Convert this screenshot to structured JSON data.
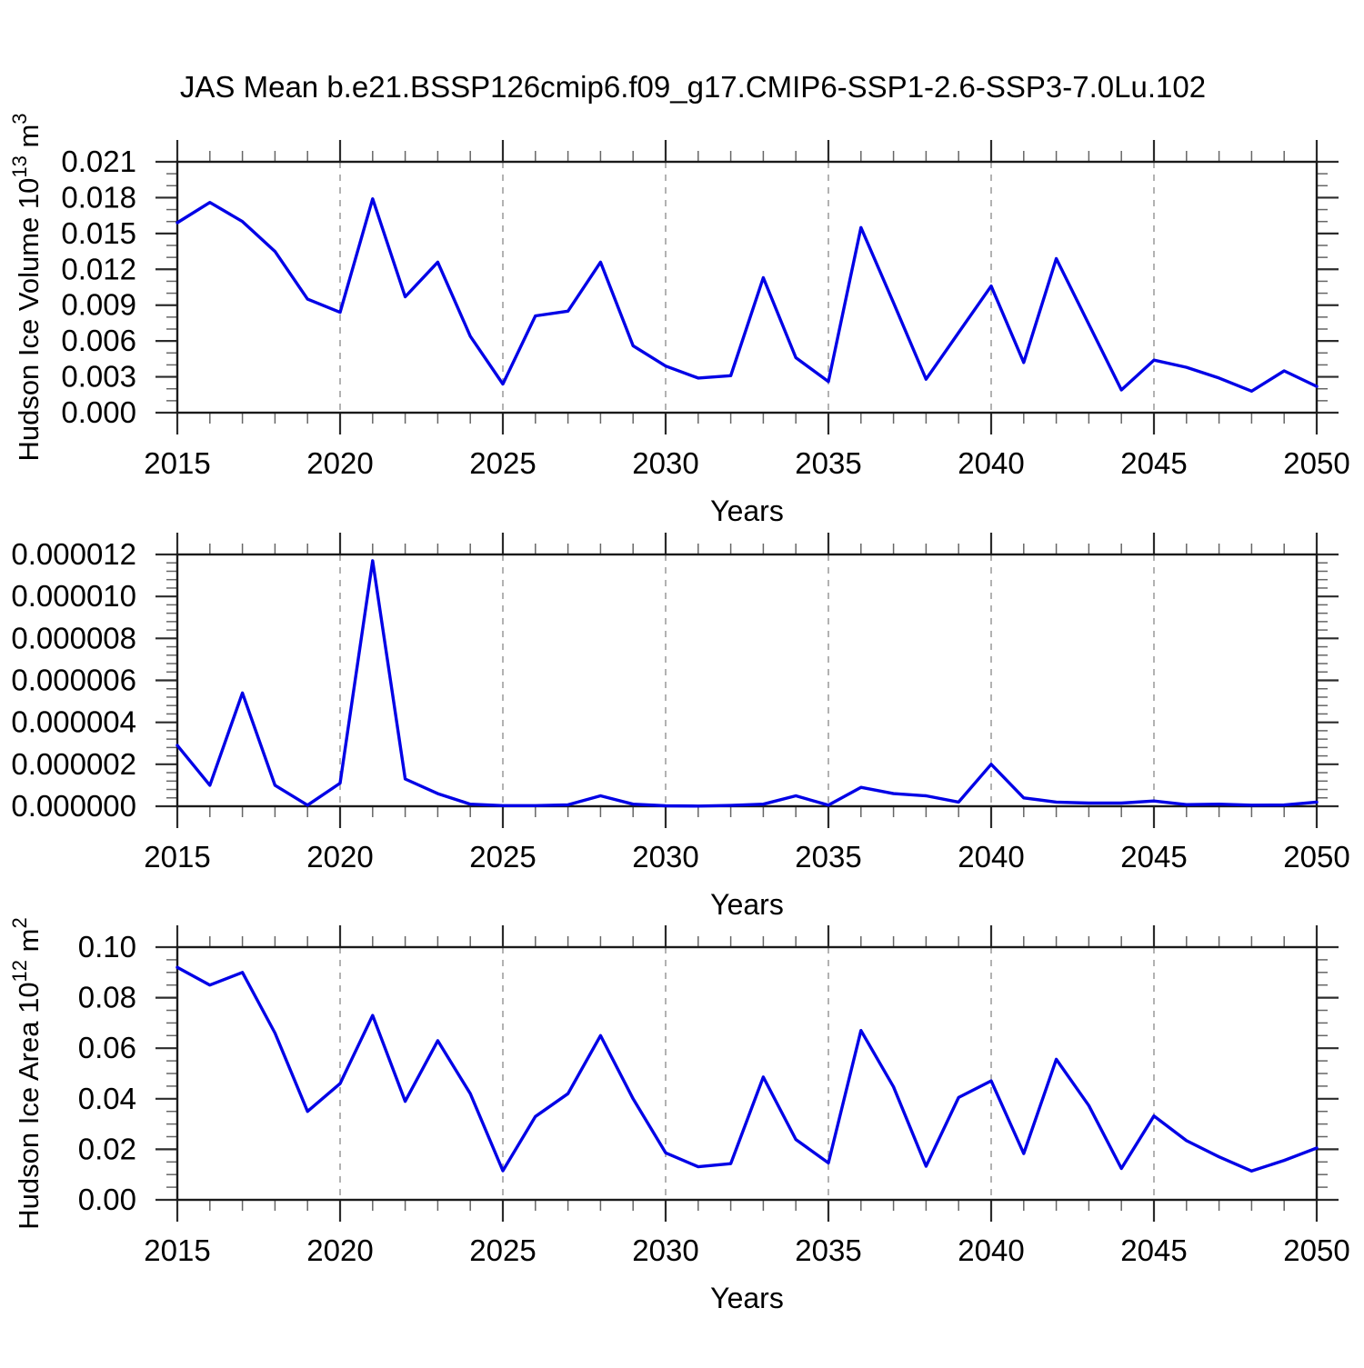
{
  "title": "JAS Mean b.e21.BSSP126cmip6.f09_g17.CMIP6-SSP1-2.6-SSP3-7.0Lu.102",
  "colors": {
    "series_line": "#0000e6",
    "axis": "#1a1a1a",
    "major_tick": "#2b2b2b",
    "minor_tick": "#666666",
    "grid_dashed": "#999999",
    "background": "#ffffff"
  },
  "chart_data": [
    {
      "type": "line",
      "name": "hudson-ice-volume",
      "ylabel": "Hudson Ice Volume 10^{13} m^{3}",
      "xlabel": "Years",
      "x": [
        2015,
        2016,
        2017,
        2018,
        2019,
        2020,
        2021,
        2022,
        2023,
        2024,
        2025,
        2026,
        2027,
        2028,
        2029,
        2030,
        2031,
        2032,
        2033,
        2034,
        2035,
        2036,
        2037,
        2038,
        2039,
        2040,
        2041,
        2042,
        2043,
        2044,
        2045,
        2046,
        2047,
        2048,
        2049,
        2050
      ],
      "values": [
        0.0159,
        0.0176,
        0.016,
        0.0135,
        0.0095,
        0.0084,
        0.0179,
        0.0097,
        0.0126,
        0.0064,
        0.0024,
        0.0081,
        0.0085,
        0.0126,
        0.0056,
        0.0039,
        0.0029,
        0.0031,
        0.0113,
        0.0046,
        0.0026,
        0.0155,
        0.0092,
        0.0028,
        0.0067,
        0.0106,
        0.0042,
        0.0129,
        0.0074,
        0.0019,
        0.0044,
        0.0038,
        0.0029,
        0.0018,
        0.0035,
        0.0022
      ],
      "xlim": [
        2015,
        2050
      ],
      "ylim": [
        0,
        0.021
      ],
      "ytick_labels": [
        "0.000",
        "0.003",
        "0.006",
        "0.009",
        "0.012",
        "0.015",
        "0.018",
        "0.021"
      ],
      "ytick_major_step": 0.003,
      "ytick_minor_step": 0.001,
      "xtick_labels": [
        "2015",
        "2020",
        "2025",
        "2030",
        "2035",
        "2040",
        "2045",
        "2050"
      ],
      "xtick_major_step": 5,
      "xtick_minor_step": 1,
      "dashed_gridlines_at_years": [
        2020,
        2025,
        2030,
        2035,
        2040,
        2045
      ],
      "grid": "vertical-dashed",
      "legend": "none"
    },
    {
      "type": "line",
      "name": "middle-series",
      "ylabel": "",
      "xlabel": "Years",
      "x": [
        2015,
        2016,
        2017,
        2018,
        2019,
        2020,
        2021,
        2022,
        2023,
        2024,
        2025,
        2026,
        2027,
        2028,
        2029,
        2030,
        2031,
        2032,
        2033,
        2034,
        2035,
        2036,
        2037,
        2038,
        2039,
        2040,
        2041,
        2042,
        2043,
        2044,
        2045,
        2046,
        2047,
        2048,
        2049,
        2050
      ],
      "values": [
        2.9e-06,
        1e-06,
        5.4e-06,
        1e-06,
        5e-08,
        1.1e-06,
        1.17e-05,
        1.3e-06,
        6e-07,
        1e-07,
        3e-08,
        3e-08,
        7e-08,
        5e-07,
        1e-07,
        2e-08,
        1e-08,
        4e-08,
        1e-07,
        5e-07,
        5e-08,
        9e-07,
        6e-07,
        5e-07,
        2e-07,
        2e-06,
        4e-07,
        2e-07,
        1.5e-07,
        1.5e-07,
        2.5e-07,
        8e-08,
        1e-07,
        5e-08,
        6e-08,
        2e-07
      ],
      "xlim": [
        2015,
        2050
      ],
      "ylim": [
        0,
        1.2e-05
      ],
      "ytick_labels": [
        "0.000000",
        "0.000002",
        "0.000004",
        "0.000006",
        "0.000008",
        "0.000010",
        "0.000012"
      ],
      "ytick_major_step": 2e-06,
      "ytick_minor_step": 4e-07,
      "xtick_labels": [
        "2015",
        "2020",
        "2025",
        "2030",
        "2035",
        "2040",
        "2045",
        "2050"
      ],
      "xtick_major_step": 5,
      "xtick_minor_step": 1,
      "dashed_gridlines_at_years": [
        2020,
        2025,
        2030,
        2035,
        2040,
        2045
      ],
      "grid": "vertical-dashed",
      "legend": "none"
    },
    {
      "type": "line",
      "name": "hudson-ice-area",
      "ylabel": "Hudson Ice Area 10^{12} m^{2}",
      "xlabel": "Years",
      "x": [
        2015,
        2016,
        2017,
        2018,
        2019,
        2020,
        2021,
        2022,
        2023,
        2024,
        2025,
        2026,
        2027,
        2028,
        2029,
        2030,
        2031,
        2032,
        2033,
        2034,
        2035,
        2036,
        2037,
        2038,
        2039,
        2040,
        2041,
        2042,
        2043,
        2044,
        2045,
        2046,
        2047,
        2048,
        2049,
        2050
      ],
      "values": [
        0.092,
        0.085,
        0.09,
        0.066,
        0.035,
        0.046,
        0.073,
        0.039,
        0.063,
        0.042,
        0.0115,
        0.033,
        0.042,
        0.065,
        0.04,
        0.0186,
        0.0131,
        0.0143,
        0.0486,
        0.0239,
        0.0146,
        0.067,
        0.0447,
        0.0133,
        0.0405,
        0.0471,
        0.0183,
        0.0556,
        0.0373,
        0.0124,
        0.0332,
        0.0234,
        0.017,
        0.0114,
        0.0156,
        0.0205
      ],
      "xlim": [
        2015,
        2050
      ],
      "ylim": [
        0,
        0.1
      ],
      "ytick_labels": [
        "0.00",
        "0.02",
        "0.04",
        "0.06",
        "0.08",
        "0.10"
      ],
      "ytick_major_step": 0.02,
      "ytick_minor_step": 0.005,
      "xtick_labels": [
        "2015",
        "2020",
        "2025",
        "2030",
        "2035",
        "2040",
        "2045",
        "2050"
      ],
      "xtick_major_step": 5,
      "xtick_minor_step": 1,
      "dashed_gridlines_at_years": [
        2020,
        2025,
        2030,
        2035,
        2040,
        2045
      ],
      "grid": "vertical-dashed",
      "legend": "none"
    }
  ]
}
